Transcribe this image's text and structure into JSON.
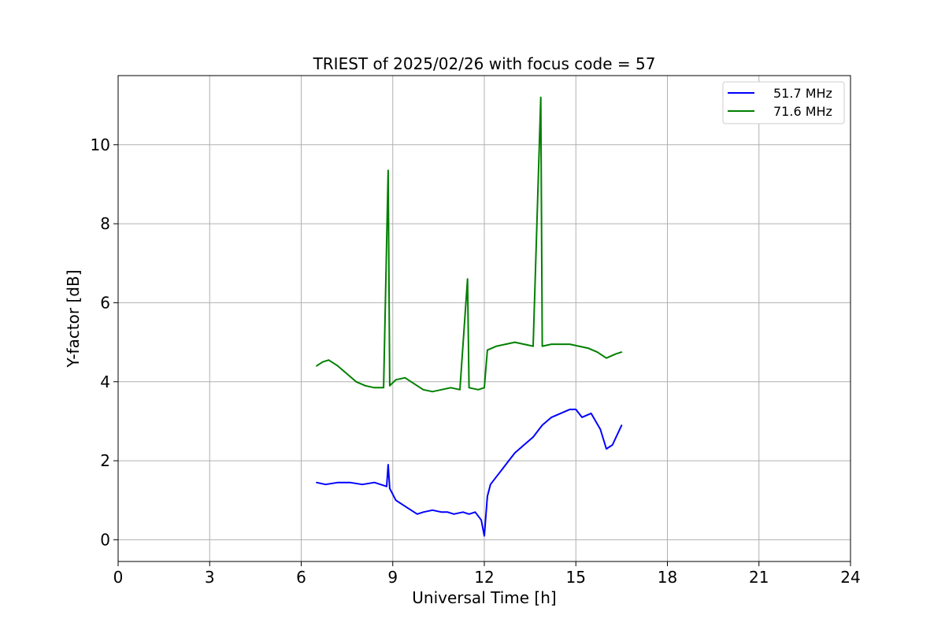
{
  "chart_data": {
    "type": "line",
    "title": "TRIEST of 2025/02/26 with focus code = 57",
    "xlabel": "Universal Time [h]",
    "ylabel": "Y-factor [dB]",
    "xlim": [
      0,
      24
    ],
    "ylim": [
      -0.55,
      11.75
    ],
    "xticks": [
      0,
      3,
      6,
      9,
      12,
      15,
      18,
      21,
      24
    ],
    "yticks": [
      0,
      2,
      4,
      6,
      8,
      10
    ],
    "grid": true,
    "legend_position": "top-right",
    "series": [
      {
        "name": "51.7 MHz",
        "color": "#0000ff",
        "x": [
          6.5,
          6.8,
          7.2,
          7.6,
          8.0,
          8.4,
          8.8,
          8.85,
          8.9,
          9.1,
          9.3,
          9.5,
          9.8,
          10.0,
          10.3,
          10.6,
          10.8,
          11.0,
          11.3,
          11.5,
          11.7,
          11.9,
          12.0,
          12.1,
          12.2,
          12.4,
          12.6,
          12.8,
          13.0,
          13.3,
          13.6,
          13.9,
          14.2,
          14.5,
          14.8,
          15.0,
          15.2,
          15.5,
          15.8,
          16.0,
          16.2,
          16.5
        ],
        "values": [
          1.45,
          1.4,
          1.45,
          1.45,
          1.4,
          1.45,
          1.35,
          1.9,
          1.3,
          1.0,
          0.9,
          0.8,
          0.65,
          0.7,
          0.75,
          0.7,
          0.7,
          0.65,
          0.7,
          0.65,
          0.7,
          0.5,
          0.1,
          1.1,
          1.4,
          1.6,
          1.8,
          2.0,
          2.2,
          2.4,
          2.6,
          2.9,
          3.1,
          3.2,
          3.3,
          3.3,
          3.1,
          3.2,
          2.8,
          2.3,
          2.4,
          2.9
        ]
      },
      {
        "name": "71.6 MHz",
        "color": "#008000",
        "x": [
          6.5,
          6.7,
          6.9,
          7.2,
          7.5,
          7.8,
          8.1,
          8.4,
          8.7,
          8.85,
          8.9,
          9.1,
          9.4,
          9.7,
          10.0,
          10.3,
          10.6,
          10.9,
          11.2,
          11.45,
          11.5,
          11.8,
          12.0,
          12.1,
          12.4,
          12.7,
          13.0,
          13.3,
          13.6,
          13.85,
          13.9,
          14.2,
          14.5,
          14.8,
          15.1,
          15.4,
          15.7,
          16.0,
          16.3,
          16.5
        ],
        "values": [
          4.4,
          4.5,
          4.55,
          4.4,
          4.2,
          4.0,
          3.9,
          3.85,
          3.85,
          9.35,
          3.9,
          4.05,
          4.1,
          3.95,
          3.8,
          3.75,
          3.8,
          3.85,
          3.8,
          6.6,
          3.85,
          3.8,
          3.85,
          4.8,
          4.9,
          4.95,
          5.0,
          4.95,
          4.9,
          11.2,
          4.9,
          4.95,
          4.95,
          4.95,
          4.9,
          4.85,
          4.75,
          4.6,
          4.7,
          4.75
        ]
      }
    ]
  }
}
